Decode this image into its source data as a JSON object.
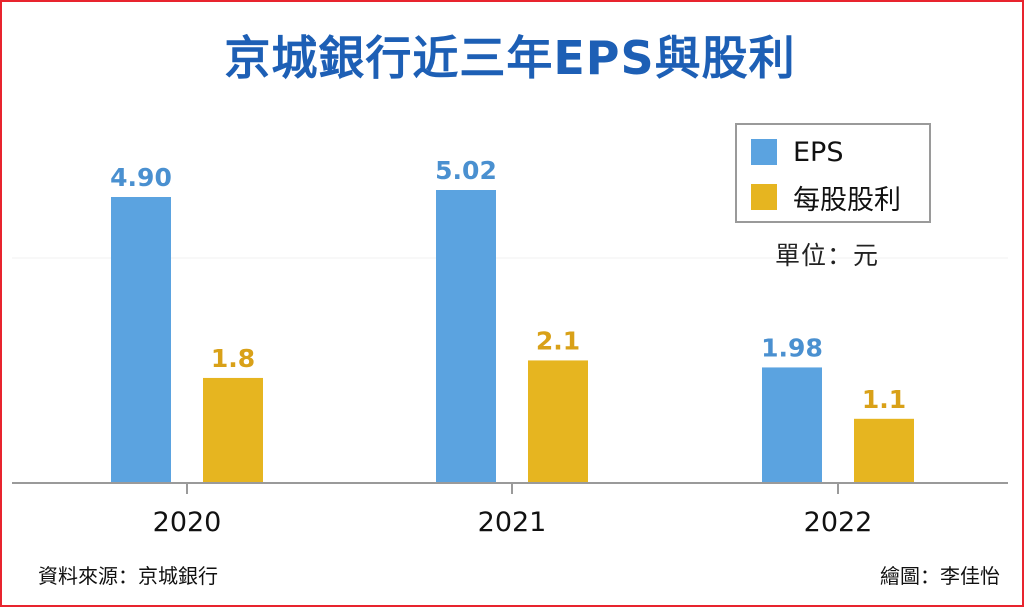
{
  "chart_data": {
    "type": "bar",
    "title": "京城銀行近三年EPS與股利",
    "categories": [
      "2020",
      "2021",
      "2022"
    ],
    "series": [
      {
        "name": "EPS",
        "color": "#5ba3e0",
        "label_color": "#4a90d0",
        "values": [
          4.9,
          5.02,
          1.98
        ],
        "labels": [
          "4.90",
          "5.02",
          "1.98"
        ]
      },
      {
        "name": "每股股利",
        "color": "#e6b520",
        "label_color": "#d9a118",
        "values": [
          1.8,
          2.1,
          1.1
        ],
        "labels": [
          "1.8",
          "2.1",
          "1.1"
        ]
      }
    ],
    "unit_label": "單位：元",
    "ylim": [
      0,
      5.5
    ],
    "grid": false,
    "legend_position": "top-right"
  },
  "source_note": "資料來源：京城銀行",
  "credit": "繪圖：李佳怡"
}
